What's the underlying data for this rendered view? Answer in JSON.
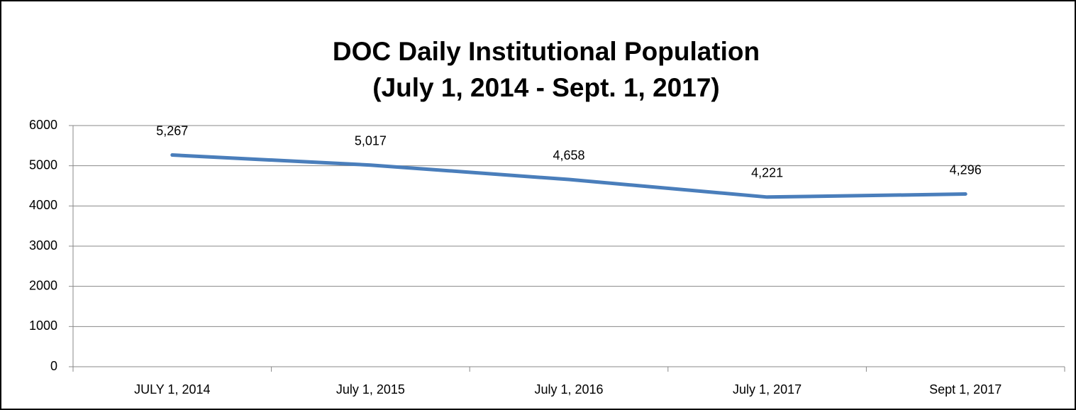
{
  "chart_data": {
    "type": "line",
    "title": [
      "DOC Daily Institutional Population",
      "(July 1, 2014 - Sept. 1, 2017)"
    ],
    "categories": [
      "JULY 1, 2014",
      "July 1, 2015",
      "July 1, 2016",
      "July 1, 2017",
      "Sept 1, 2017"
    ],
    "series": [
      {
        "color": "#4a7ebb",
        "values": [
          5267,
          5017,
          4658,
          4221,
          4296
        ],
        "value_labels": [
          "5,267",
          "5,017",
          "4,658",
          "4,221",
          "4,296"
        ]
      }
    ],
    "ylim": [
      0,
      6000
    ],
    "yticks": [
      0,
      1000,
      2000,
      3000,
      4000,
      5000,
      6000
    ],
    "grid": true
  }
}
